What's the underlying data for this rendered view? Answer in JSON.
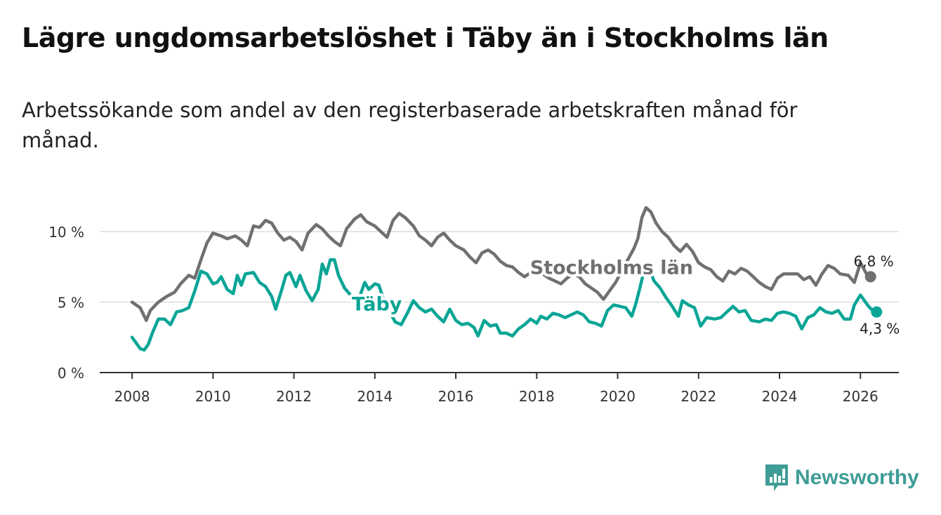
{
  "header": {
    "title": "Lägre ungdomsarbetslöshet i Täby än i Stockholms län",
    "subtitle": "Arbetssökande som andel av den registerbaserade arbetskraften månad för månad."
  },
  "branding": {
    "name": "Newsworthy"
  },
  "colors": {
    "stockholm": "#707072",
    "taby": "#0aa596",
    "grid": "#dcdcdc",
    "axis": "#333333",
    "brand": "#3f9c96"
  },
  "chart_data": {
    "type": "line",
    "title": "Lägre ungdomsarbetslöshet i Täby än i Stockholms län",
    "subtitle": "Arbetssökande som andel av den registerbaserade arbetskraften månad för månad.",
    "xlabel": "",
    "ylabel": "",
    "xlim": [
      2007.2,
      2026.95
    ],
    "ylim": [
      0,
      12
    ],
    "x_ticks": [
      2008,
      2010,
      2012,
      2014,
      2016,
      2018,
      2020,
      2022,
      2024,
      2026
    ],
    "x_tick_labels": [
      "2008",
      "2010",
      "2012",
      "2014",
      "2016",
      "2018",
      "2020",
      "2022",
      "2024",
      "2026"
    ],
    "y_ticks": [
      0,
      5,
      10
    ],
    "y_tick_labels": [
      "0 %",
      "5 %",
      "10 %"
    ],
    "grid": true,
    "series": [
      {
        "name": "Stockholms län",
        "color": "#707072",
        "end_label": "6,8 %",
        "points": [
          [
            2008.0,
            5.0
          ],
          [
            2008.2,
            4.6
          ],
          [
            2008.35,
            3.7
          ],
          [
            2008.45,
            4.4
          ],
          [
            2008.65,
            5.0
          ],
          [
            2008.85,
            5.4
          ],
          [
            2009.05,
            5.7
          ],
          [
            2009.2,
            6.3
          ],
          [
            2009.4,
            6.9
          ],
          [
            2009.55,
            6.7
          ],
          [
            2009.7,
            8.0
          ],
          [
            2009.85,
            9.2
          ],
          [
            2010.0,
            9.9
          ],
          [
            2010.2,
            9.7
          ],
          [
            2010.35,
            9.5
          ],
          [
            2010.55,
            9.7
          ],
          [
            2010.7,
            9.4
          ],
          [
            2010.85,
            9.0
          ],
          [
            2011.0,
            10.4
          ],
          [
            2011.15,
            10.3
          ],
          [
            2011.3,
            10.8
          ],
          [
            2011.45,
            10.6
          ],
          [
            2011.6,
            9.9
          ],
          [
            2011.75,
            9.4
          ],
          [
            2011.9,
            9.6
          ],
          [
            2012.05,
            9.3
          ],
          [
            2012.2,
            8.7
          ],
          [
            2012.35,
            9.9
          ],
          [
            2012.55,
            10.5
          ],
          [
            2012.7,
            10.2
          ],
          [
            2012.85,
            9.7
          ],
          [
            2013.0,
            9.3
          ],
          [
            2013.15,
            9.0
          ],
          [
            2013.3,
            10.2
          ],
          [
            2013.5,
            10.9
          ],
          [
            2013.65,
            11.2
          ],
          [
            2013.8,
            10.7
          ],
          [
            2014.0,
            10.4
          ],
          [
            2014.15,
            10.0
          ],
          [
            2014.3,
            9.6
          ],
          [
            2014.45,
            10.8
          ],
          [
            2014.6,
            11.3
          ],
          [
            2014.75,
            11.0
          ],
          [
            2014.95,
            10.4
          ],
          [
            2015.1,
            9.7
          ],
          [
            2015.25,
            9.4
          ],
          [
            2015.4,
            9.0
          ],
          [
            2015.55,
            9.6
          ],
          [
            2015.7,
            9.9
          ],
          [
            2015.85,
            9.4
          ],
          [
            2016.0,
            9.0
          ],
          [
            2016.2,
            8.7
          ],
          [
            2016.35,
            8.2
          ],
          [
            2016.5,
            7.8
          ],
          [
            2016.65,
            8.5
          ],
          [
            2016.8,
            8.7
          ],
          [
            2016.95,
            8.4
          ],
          [
            2017.1,
            7.9
          ],
          [
            2017.25,
            7.6
          ],
          [
            2017.4,
            7.5
          ],
          [
            2017.55,
            7.1
          ],
          [
            2017.7,
            6.8
          ],
          [
            2017.85,
            7.1
          ],
          [
            2018.0,
            7.4
          ],
          [
            2018.15,
            7.0
          ],
          [
            2018.3,
            6.7
          ],
          [
            2018.45,
            6.5
          ],
          [
            2018.6,
            6.3
          ],
          [
            2018.75,
            6.7
          ],
          [
            2018.9,
            7.0
          ],
          [
            2019.05,
            6.8
          ],
          [
            2019.2,
            6.3
          ],
          [
            2019.35,
            6.0
          ],
          [
            2019.5,
            5.7
          ],
          [
            2019.65,
            5.2
          ],
          [
            2019.8,
            5.8
          ],
          [
            2019.95,
            6.4
          ],
          [
            2020.1,
            7.2
          ],
          [
            2020.25,
            8.0
          ],
          [
            2020.4,
            8.8
          ],
          [
            2020.5,
            9.5
          ],
          [
            2020.6,
            11.0
          ],
          [
            2020.7,
            11.7
          ],
          [
            2020.82,
            11.4
          ],
          [
            2020.95,
            10.6
          ],
          [
            2021.1,
            10.0
          ],
          [
            2021.25,
            9.6
          ],
          [
            2021.4,
            9.0
          ],
          [
            2021.55,
            8.6
          ],
          [
            2021.7,
            9.1
          ],
          [
            2021.85,
            8.6
          ],
          [
            2022.0,
            7.8
          ],
          [
            2022.15,
            7.5
          ],
          [
            2022.3,
            7.3
          ],
          [
            2022.45,
            6.8
          ],
          [
            2022.6,
            6.5
          ],
          [
            2022.75,
            7.2
          ],
          [
            2022.9,
            7.0
          ],
          [
            2023.05,
            7.4
          ],
          [
            2023.2,
            7.2
          ],
          [
            2023.35,
            6.8
          ],
          [
            2023.5,
            6.4
          ],
          [
            2023.65,
            6.1
          ],
          [
            2023.8,
            5.9
          ],
          [
            2023.95,
            6.7
          ],
          [
            2024.1,
            7.0
          ],
          [
            2024.3,
            7.0
          ],
          [
            2024.45,
            7.0
          ],
          [
            2024.6,
            6.6
          ],
          [
            2024.75,
            6.8
          ],
          [
            2024.9,
            6.2
          ],
          [
            2025.05,
            7.0
          ],
          [
            2025.2,
            7.6
          ],
          [
            2025.35,
            7.4
          ],
          [
            2025.5,
            7.0
          ],
          [
            2025.7,
            6.9
          ],
          [
            2025.85,
            6.4
          ],
          [
            2026.0,
            7.8
          ],
          [
            2026.15,
            7.0
          ],
          [
            2026.25,
            6.8
          ]
        ]
      },
      {
        "name": "Täby",
        "color": "#0aa596",
        "end_label": "4,3 %",
        "points": [
          [
            2008.0,
            2.5
          ],
          [
            2008.1,
            2.1
          ],
          [
            2008.2,
            1.7
          ],
          [
            2008.3,
            1.6
          ],
          [
            2008.4,
            2.0
          ],
          [
            2008.5,
            2.8
          ],
          [
            2008.65,
            3.8
          ],
          [
            2008.8,
            3.8
          ],
          [
            2008.95,
            3.4
          ],
          [
            2009.1,
            4.3
          ],
          [
            2009.25,
            4.4
          ],
          [
            2009.4,
            4.6
          ],
          [
            2009.55,
            5.8
          ],
          [
            2009.7,
            7.2
          ],
          [
            2009.85,
            7.0
          ],
          [
            2010.0,
            6.3
          ],
          [
            2010.1,
            6.4
          ],
          [
            2010.2,
            6.8
          ],
          [
            2010.35,
            5.9
          ],
          [
            2010.5,
            5.6
          ],
          [
            2010.6,
            6.9
          ],
          [
            2010.7,
            6.2
          ],
          [
            2010.8,
            7.0
          ],
          [
            2011.0,
            7.1
          ],
          [
            2011.15,
            6.4
          ],
          [
            2011.3,
            6.1
          ],
          [
            2011.45,
            5.4
          ],
          [
            2011.55,
            4.5
          ],
          [
            2011.7,
            5.9
          ],
          [
            2011.8,
            6.9
          ],
          [
            2011.9,
            7.1
          ],
          [
            2012.05,
            6.1
          ],
          [
            2012.15,
            6.9
          ],
          [
            2012.3,
            5.8
          ],
          [
            2012.45,
            5.1
          ],
          [
            2012.6,
            5.9
          ],
          [
            2012.7,
            7.7
          ],
          [
            2012.8,
            7.0
          ],
          [
            2012.9,
            8.0
          ],
          [
            2013.0,
            8.0
          ],
          [
            2013.1,
            6.9
          ],
          [
            2013.25,
            6.0
          ],
          [
            2013.4,
            5.5
          ],
          [
            2013.6,
            5.2
          ],
          [
            2013.75,
            6.4
          ],
          [
            2013.85,
            5.9
          ],
          [
            2014.0,
            6.3
          ],
          [
            2014.1,
            6.2
          ],
          [
            2014.2,
            5.3
          ],
          [
            2014.35,
            4.4
          ],
          [
            2014.5,
            3.6
          ],
          [
            2014.65,
            3.4
          ],
          [
            2014.8,
            4.2
          ],
          [
            2014.95,
            5.1
          ],
          [
            2015.1,
            4.6
          ],
          [
            2015.25,
            4.3
          ],
          [
            2015.4,
            4.5
          ],
          [
            2015.55,
            4.0
          ],
          [
            2015.7,
            3.6
          ],
          [
            2015.85,
            4.5
          ],
          [
            2016.0,
            3.7
          ],
          [
            2016.15,
            3.4
          ],
          [
            2016.3,
            3.5
          ],
          [
            2016.45,
            3.2
          ],
          [
            2016.55,
            2.6
          ],
          [
            2016.7,
            3.7
          ],
          [
            2016.85,
            3.3
          ],
          [
            2017.0,
            3.4
          ],
          [
            2017.1,
            2.8
          ],
          [
            2017.25,
            2.8
          ],
          [
            2017.4,
            2.6
          ],
          [
            2017.55,
            3.1
          ],
          [
            2017.7,
            3.4
          ],
          [
            2017.85,
            3.8
          ],
          [
            2018.0,
            3.5
          ],
          [
            2018.1,
            4.0
          ],
          [
            2018.25,
            3.8
          ],
          [
            2018.4,
            4.2
          ],
          [
            2018.55,
            4.1
          ],
          [
            2018.7,
            3.9
          ],
          [
            2018.85,
            4.1
          ],
          [
            2019.0,
            4.3
          ],
          [
            2019.15,
            4.1
          ],
          [
            2019.3,
            3.6
          ],
          [
            2019.45,
            3.5
          ],
          [
            2019.6,
            3.3
          ],
          [
            2019.75,
            4.4
          ],
          [
            2019.9,
            4.8
          ],
          [
            2020.05,
            4.7
          ],
          [
            2020.2,
            4.6
          ],
          [
            2020.35,
            4.0
          ],
          [
            2020.45,
            4.9
          ],
          [
            2020.55,
            6.0
          ],
          [
            2020.65,
            7.2
          ],
          [
            2020.75,
            7.6
          ],
          [
            2020.9,
            6.5
          ],
          [
            2021.05,
            6.0
          ],
          [
            2021.2,
            5.3
          ],
          [
            2021.35,
            4.7
          ],
          [
            2021.5,
            4.0
          ],
          [
            2021.6,
            5.1
          ],
          [
            2021.75,
            4.8
          ],
          [
            2021.9,
            4.6
          ],
          [
            2022.05,
            3.3
          ],
          [
            2022.2,
            3.9
          ],
          [
            2022.4,
            3.8
          ],
          [
            2022.55,
            3.9
          ],
          [
            2022.7,
            4.3
          ],
          [
            2022.85,
            4.7
          ],
          [
            2023.0,
            4.3
          ],
          [
            2023.15,
            4.4
          ],
          [
            2023.3,
            3.7
          ],
          [
            2023.5,
            3.6
          ],
          [
            2023.65,
            3.8
          ],
          [
            2023.8,
            3.7
          ],
          [
            2023.95,
            4.2
          ],
          [
            2024.1,
            4.3
          ],
          [
            2024.25,
            4.2
          ],
          [
            2024.4,
            4.0
          ],
          [
            2024.55,
            3.1
          ],
          [
            2024.7,
            3.9
          ],
          [
            2024.85,
            4.1
          ],
          [
            2025.0,
            4.6
          ],
          [
            2025.15,
            4.3
          ],
          [
            2025.3,
            4.2
          ],
          [
            2025.45,
            4.4
          ],
          [
            2025.6,
            3.8
          ],
          [
            2025.75,
            3.8
          ],
          [
            2025.85,
            4.8
          ],
          [
            2026.0,
            5.5
          ],
          [
            2026.1,
            5.1
          ],
          [
            2026.2,
            4.7
          ],
          [
            2026.3,
            4.4
          ],
          [
            2026.4,
            4.3
          ]
        ]
      }
    ],
    "annotations": [
      {
        "text": "Stockholms län",
        "series": "Stockholms län",
        "x": 2019.85,
        "y": 7.0
      },
      {
        "text": "Täby",
        "series": "Täby",
        "x": 2014.05,
        "y": 4.4
      }
    ]
  }
}
